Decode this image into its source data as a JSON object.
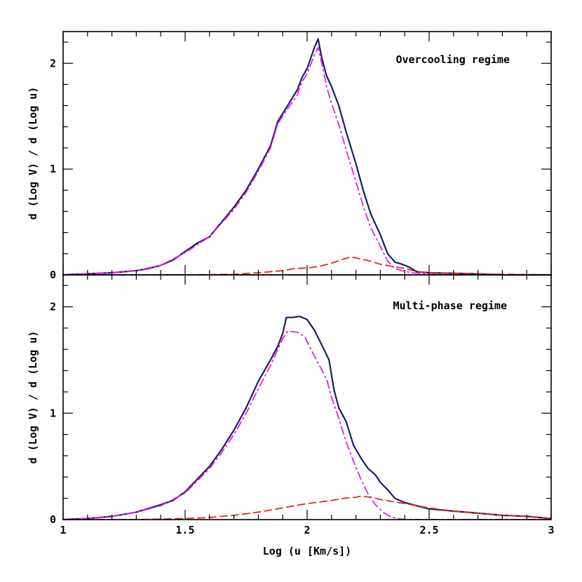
{
  "chart_data": [
    {
      "type": "line",
      "annotation": "Overcooling regime",
      "ylabel": "d (Log V) / d (Log u)",
      "xlabel": "",
      "xlim": [
        1,
        3
      ],
      "ylim": [
        0,
        2.3
      ],
      "x_ticks": [
        "1",
        "1.5",
        "2",
        "2.5",
        "3"
      ],
      "show_x_tick_labels": false,
      "y_ticks": [
        "0",
        "1",
        "2"
      ],
      "grid": false,
      "series": [
        {
          "color": "#1b1b6b",
          "dash": "solid",
          "points": [
            [
              1.0,
              0.0
            ],
            [
              1.1,
              0.01
            ],
            [
              1.2,
              0.02
            ],
            [
              1.3,
              0.04
            ],
            [
              1.35,
              0.06
            ],
            [
              1.4,
              0.09
            ],
            [
              1.45,
              0.14
            ],
            [
              1.5,
              0.22
            ],
            [
              1.55,
              0.3
            ],
            [
              1.6,
              0.36
            ],
            [
              1.65,
              0.5
            ],
            [
              1.7,
              0.64
            ],
            [
              1.75,
              0.8
            ],
            [
              1.8,
              1.0
            ],
            [
              1.85,
              1.22
            ],
            [
              1.88,
              1.45
            ],
            [
              1.92,
              1.6
            ],
            [
              1.96,
              1.75
            ],
            [
              1.98,
              1.87
            ],
            [
              2.0,
              1.95
            ],
            [
              2.03,
              2.15
            ],
            [
              2.045,
              2.23
            ],
            [
              2.06,
              2.05
            ],
            [
              2.08,
              1.88
            ],
            [
              2.1,
              1.78
            ],
            [
              2.13,
              1.6
            ],
            [
              2.16,
              1.35
            ],
            [
              2.2,
              1.05
            ],
            [
              2.23,
              0.8
            ],
            [
              2.26,
              0.58
            ],
            [
              2.3,
              0.38
            ],
            [
              2.33,
              0.2
            ],
            [
              2.36,
              0.12
            ],
            [
              2.39,
              0.1
            ],
            [
              2.42,
              0.07
            ],
            [
              2.45,
              0.03
            ],
            [
              2.5,
              0.02
            ],
            [
              2.6,
              0.015
            ],
            [
              2.7,
              0.01
            ],
            [
              2.8,
              0.0
            ],
            [
              3.0,
              0.0
            ]
          ]
        },
        {
          "color": "#e81ce6",
          "dash": "dashdot",
          "points": [
            [
              1.0,
              0.0
            ],
            [
              1.1,
              0.01
            ],
            [
              1.2,
              0.02
            ],
            [
              1.3,
              0.04
            ],
            [
              1.4,
              0.09
            ],
            [
              1.5,
              0.21
            ],
            [
              1.6,
              0.36
            ],
            [
              1.7,
              0.62
            ],
            [
              1.75,
              0.78
            ],
            [
              1.8,
              0.98
            ],
            [
              1.85,
              1.2
            ],
            [
              1.88,
              1.43
            ],
            [
              1.92,
              1.57
            ],
            [
              1.96,
              1.7
            ],
            [
              1.98,
              1.83
            ],
            [
              2.0,
              1.9
            ],
            [
              2.03,
              2.08
            ],
            [
              2.045,
              2.15
            ],
            [
              2.06,
              2.0
            ],
            [
              2.08,
              1.78
            ],
            [
              2.1,
              1.62
            ],
            [
              2.13,
              1.42
            ],
            [
              2.16,
              1.18
            ],
            [
              2.2,
              0.88
            ],
            [
              2.23,
              0.65
            ],
            [
              2.26,
              0.45
            ],
            [
              2.3,
              0.27
            ],
            [
              2.33,
              0.13
            ],
            [
              2.36,
              0.06
            ],
            [
              2.39,
              0.04
            ],
            [
              2.43,
              0.02
            ],
            [
              2.5,
              0.005
            ],
            [
              2.6,
              0.0
            ],
            [
              3.0,
              0.0
            ]
          ]
        },
        {
          "color": "#e8261c",
          "dash": "dashed",
          "points": [
            [
              1.0,
              0.0
            ],
            [
              1.5,
              0.0
            ],
            [
              1.7,
              0.005
            ],
            [
              1.8,
              0.02
            ],
            [
              1.9,
              0.04
            ],
            [
              1.95,
              0.06
            ],
            [
              2.0,
              0.065
            ],
            [
              2.05,
              0.08
            ],
            [
              2.1,
              0.11
            ],
            [
              2.15,
              0.15
            ],
            [
              2.18,
              0.17
            ],
            [
              2.22,
              0.15
            ],
            [
              2.26,
              0.13
            ],
            [
              2.3,
              0.1
            ],
            [
              2.35,
              0.08
            ],
            [
              2.4,
              0.06
            ],
            [
              2.45,
              0.03
            ],
            [
              2.5,
              0.02
            ],
            [
              2.6,
              0.015
            ],
            [
              2.7,
              0.01
            ],
            [
              2.8,
              0.005
            ],
            [
              3.0,
              0.0
            ]
          ]
        }
      ]
    },
    {
      "type": "line",
      "annotation": "Multi-phase regime",
      "ylabel": "d (Log V) / d (Log u)",
      "xlabel": "Log (u [Km/s])",
      "xlim": [
        1,
        3
      ],
      "ylim": [
        0,
        2.3
      ],
      "x_ticks": [
        "1",
        "1.5",
        "2",
        "2.5",
        "3"
      ],
      "show_x_tick_labels": true,
      "y_ticks": [
        "0",
        "1",
        "2"
      ],
      "grid": false,
      "series": [
        {
          "color": "#1b1b6b",
          "dash": "solid",
          "points": [
            [
              1.0,
              0.0
            ],
            [
              1.1,
              0.01
            ],
            [
              1.2,
              0.03
            ],
            [
              1.3,
              0.07
            ],
            [
              1.4,
              0.14
            ],
            [
              1.45,
              0.18
            ],
            [
              1.5,
              0.26
            ],
            [
              1.55,
              0.38
            ],
            [
              1.6,
              0.5
            ],
            [
              1.65,
              0.66
            ],
            [
              1.7,
              0.84
            ],
            [
              1.75,
              1.05
            ],
            [
              1.8,
              1.3
            ],
            [
              1.85,
              1.5
            ],
            [
              1.88,
              1.63
            ],
            [
              1.9,
              1.75
            ],
            [
              1.915,
              1.9
            ],
            [
              1.94,
              1.9
            ],
            [
              1.97,
              1.91
            ],
            [
              2.0,
              1.88
            ],
            [
              2.03,
              1.78
            ],
            [
              2.06,
              1.64
            ],
            [
              2.09,
              1.5
            ],
            [
              2.11,
              1.22
            ],
            [
              2.13,
              1.05
            ],
            [
              2.16,
              0.92
            ],
            [
              2.19,
              0.7
            ],
            [
              2.22,
              0.58
            ],
            [
              2.25,
              0.48
            ],
            [
              2.28,
              0.42
            ],
            [
              2.3,
              0.35
            ],
            [
              2.33,
              0.28
            ],
            [
              2.36,
              0.2
            ],
            [
              2.4,
              0.16
            ],
            [
              2.45,
              0.13
            ],
            [
              2.5,
              0.1
            ],
            [
              2.55,
              0.09
            ],
            [
              2.6,
              0.08
            ],
            [
              2.7,
              0.06
            ],
            [
              2.8,
              0.04
            ],
            [
              2.9,
              0.03
            ],
            [
              3.0,
              0.01
            ]
          ]
        },
        {
          "color": "#e81ce6",
          "dash": "dashdot",
          "points": [
            [
              1.0,
              0.0
            ],
            [
              1.1,
              0.01
            ],
            [
              1.2,
              0.03
            ],
            [
              1.3,
              0.07
            ],
            [
              1.4,
              0.13
            ],
            [
              1.5,
              0.25
            ],
            [
              1.6,
              0.48
            ],
            [
              1.65,
              0.63
            ],
            [
              1.7,
              0.8
            ],
            [
              1.75,
              1.0
            ],
            [
              1.8,
              1.23
            ],
            [
              1.85,
              1.45
            ],
            [
              1.88,
              1.6
            ],
            [
              1.9,
              1.7
            ],
            [
              1.92,
              1.77
            ],
            [
              1.96,
              1.76
            ],
            [
              1.99,
              1.72
            ],
            [
              2.02,
              1.58
            ],
            [
              2.05,
              1.45
            ],
            [
              2.08,
              1.32
            ],
            [
              2.1,
              1.15
            ],
            [
              2.13,
              0.95
            ],
            [
              2.16,
              0.73
            ],
            [
              2.19,
              0.55
            ],
            [
              2.22,
              0.38
            ],
            [
              2.25,
              0.24
            ],
            [
              2.28,
              0.14
            ],
            [
              2.31,
              0.07
            ],
            [
              2.34,
              0.03
            ],
            [
              2.37,
              0.01
            ],
            [
              2.4,
              0.0
            ],
            [
              3.0,
              0.0
            ]
          ]
        },
        {
          "color": "#e8261c",
          "dash": "dashed",
          "points": [
            [
              1.0,
              0.0
            ],
            [
              1.3,
              0.0
            ],
            [
              1.5,
              0.01
            ],
            [
              1.6,
              0.02
            ],
            [
              1.7,
              0.04
            ],
            [
              1.8,
              0.07
            ],
            [
              1.9,
              0.11
            ],
            [
              2.0,
              0.15
            ],
            [
              2.1,
              0.18
            ],
            [
              2.15,
              0.2
            ],
            [
              2.2,
              0.21
            ],
            [
              2.22,
              0.22
            ],
            [
              2.26,
              0.21
            ],
            [
              2.3,
              0.19
            ],
            [
              2.35,
              0.17
            ],
            [
              2.4,
              0.15
            ],
            [
              2.5,
              0.11
            ],
            [
              2.6,
              0.08
            ],
            [
              2.7,
              0.06
            ],
            [
              2.8,
              0.04
            ],
            [
              2.9,
              0.03
            ],
            [
              3.0,
              0.01
            ]
          ]
        }
      ]
    }
  ]
}
